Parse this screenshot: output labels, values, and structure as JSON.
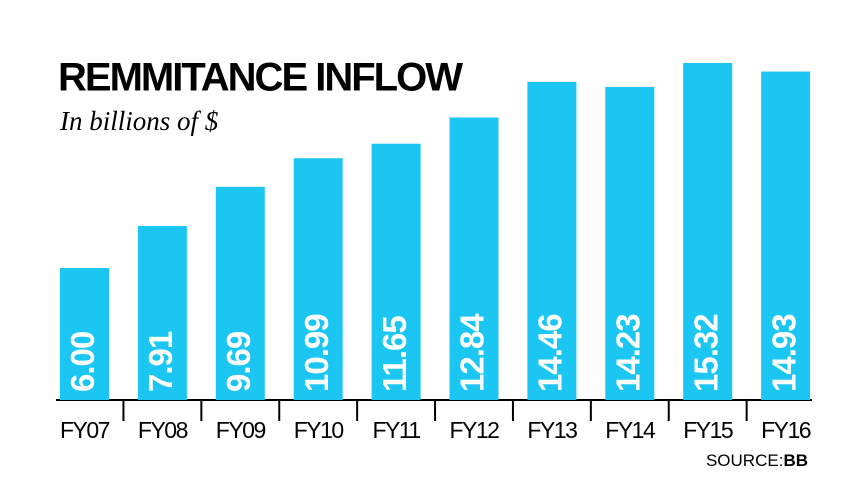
{
  "chart_data": {
    "type": "bar",
    "title": "REMMITANCE INFLOW",
    "subtitle": "In billions of $",
    "categories": [
      "FY07",
      "FY08",
      "FY09",
      "FY10",
      "FY11",
      "FY12",
      "FY13",
      "FY14",
      "FY15",
      "FY16"
    ],
    "values": [
      6.0,
      7.91,
      9.69,
      10.99,
      11.65,
      12.84,
      14.46,
      14.23,
      15.32,
      14.93
    ],
    "value_labels": [
      "6.00",
      "7.91",
      "9.69",
      "10.99",
      "11.65",
      "12.84",
      "14.46",
      "14.23",
      "15.32",
      "14.93"
    ],
    "color": "#1cc6f3",
    "source_label": "SOURCE:",
    "source": "BB"
  }
}
